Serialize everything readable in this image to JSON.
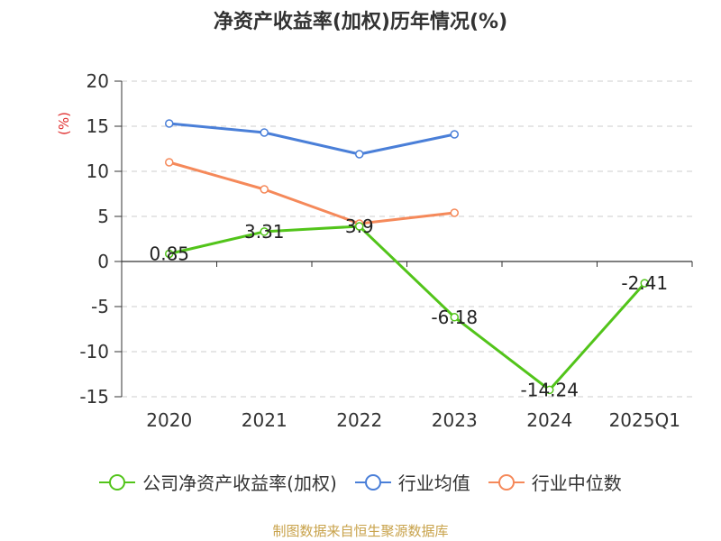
{
  "chart_data": {
    "type": "line",
    "title": "净资产收益率(加权)历年情况(%)",
    "ylabel": "(%)",
    "categories": [
      "2020",
      "2021",
      "2022",
      "2023",
      "2024",
      "2025Q1"
    ],
    "ylim": [
      -15,
      20
    ],
    "yticks": [
      20,
      15,
      10,
      5,
      0,
      -5,
      -10,
      -15
    ],
    "grid": true,
    "legend_position": "bottom",
    "series": [
      {
        "name": "公司净资产收益率(加权)",
        "color": "#52c41a",
        "values": [
          0.85,
          3.31,
          3.9,
          -6.18,
          -14.24,
          -2.41
        ],
        "labels": [
          "0.85",
          "3.31",
          "3.9",
          "-6.18",
          "-14.24",
          "-2.41"
        ]
      },
      {
        "name": "行业均值",
        "color": "#4a7fd8",
        "values": [
          15.3,
          14.3,
          11.9,
          14.1,
          null,
          null
        ]
      },
      {
        "name": "行业中位数",
        "color": "#f5895a",
        "values": [
          11.0,
          8.0,
          4.2,
          5.4,
          null,
          null
        ]
      }
    ]
  },
  "source": "制图数据来自恒生聚源数据库"
}
